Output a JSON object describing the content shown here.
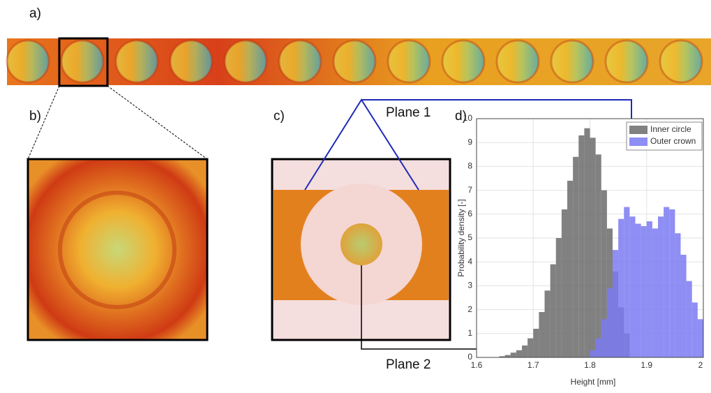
{
  "labels": {
    "a": "a)",
    "b": "b)",
    "c": "c)",
    "d": "d)",
    "plane1": "Plane 1",
    "plane2": "Plane 2"
  },
  "chart_data": {
    "type": "histogram",
    "xlabel": "Height [mm]",
    "ylabel": "Probability density [-]",
    "xlim": [
      1.6,
      2.0
    ],
    "ylim": [
      0,
      10
    ],
    "xticks": [
      1.6,
      1.7,
      1.8,
      1.9,
      2
    ],
    "yticks": [
      0,
      1,
      2,
      3,
      4,
      5,
      6,
      7,
      8,
      9,
      10
    ],
    "grid": true,
    "legend": "upper right",
    "series": [
      {
        "name": "Inner circle",
        "color": "#6b6b6b",
        "bins": [
          1.64,
          1.65,
          1.66,
          1.67,
          1.68,
          1.69,
          1.7,
          1.71,
          1.72,
          1.73,
          1.74,
          1.75,
          1.76,
          1.77,
          1.78,
          1.79,
          1.8,
          1.81,
          1.82,
          1.83,
          1.84,
          1.85,
          1.86,
          1.87
        ],
        "values": [
          0.05,
          0.1,
          0.2,
          0.3,
          0.5,
          0.8,
          1.2,
          1.9,
          2.8,
          3.9,
          5.0,
          6.2,
          7.4,
          8.4,
          9.3,
          9.6,
          9.2,
          8.5,
          7.0,
          5.4,
          3.6,
          2.1,
          1.0
        ]
      },
      {
        "name": "Outer crown",
        "color": "#7a7af2",
        "bins": [
          1.8,
          1.81,
          1.82,
          1.83,
          1.84,
          1.85,
          1.86,
          1.87,
          1.88,
          1.89,
          1.9,
          1.91,
          1.92,
          1.93,
          1.94,
          1.95,
          1.96,
          1.97,
          1.98,
          1.99,
          2.0
        ],
        "values": [
          0.3,
          0.8,
          1.6,
          2.9,
          4.5,
          5.8,
          6.3,
          5.9,
          5.6,
          5.5,
          5.7,
          5.4,
          5.9,
          6.3,
          6.2,
          5.2,
          4.3,
          3.2,
          2.3,
          1.6
        ]
      }
    ]
  }
}
